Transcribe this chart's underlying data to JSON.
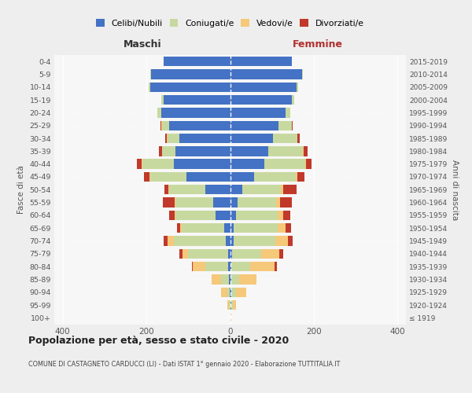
{
  "age_groups": [
    "100+",
    "95-99",
    "90-94",
    "85-89",
    "80-84",
    "75-79",
    "70-74",
    "65-69",
    "60-64",
    "55-59",
    "50-54",
    "45-49",
    "40-44",
    "35-39",
    "30-34",
    "25-29",
    "20-24",
    "15-19",
    "10-14",
    "5-9",
    "0-4"
  ],
  "birth_years": [
    "≤ 1919",
    "1920-1924",
    "1925-1929",
    "1930-1934",
    "1935-1939",
    "1940-1944",
    "1945-1949",
    "1950-1954",
    "1955-1959",
    "1960-1964",
    "1965-1969",
    "1970-1974",
    "1975-1979",
    "1980-1984",
    "1985-1989",
    "1990-1994",
    "1995-1999",
    "2000-2004",
    "2005-2009",
    "2010-2014",
    "2015-2019"
  ],
  "colors": {
    "celibi": "#4472c4",
    "coniugati": "#c8d9a0",
    "vedovi": "#f5c87a",
    "divorziati": "#c0392b"
  },
  "maschi": {
    "celibi": [
      0,
      0,
      1,
      2,
      4,
      5,
      10,
      15,
      35,
      40,
      60,
      105,
      135,
      130,
      122,
      145,
      165,
      158,
      190,
      188,
      158
    ],
    "coniugati": [
      0,
      2,
      6,
      20,
      55,
      95,
      125,
      100,
      95,
      90,
      85,
      85,
      75,
      32,
      28,
      18,
      8,
      6,
      5,
      2,
      0
    ],
    "vedovi": [
      0,
      5,
      15,
      22,
      30,
      14,
      14,
      5,
      2,
      2,
      2,
      2,
      2,
      1,
      1,
      1,
      0,
      0,
      0,
      0,
      0
    ],
    "divorziati": [
      0,
      0,
      0,
      0,
      2,
      8,
      10,
      6,
      14,
      28,
      10,
      14,
      10,
      8,
      4,
      2,
      0,
      0,
      0,
      0,
      0
    ]
  },
  "femmine": {
    "nubili": [
      0,
      2,
      2,
      3,
      3,
      5,
      8,
      8,
      15,
      18,
      30,
      58,
      82,
      92,
      102,
      115,
      132,
      148,
      158,
      172,
      148
    ],
    "coniugate": [
      0,
      5,
      12,
      18,
      45,
      70,
      100,
      105,
      98,
      92,
      92,
      98,
      98,
      82,
      58,
      32,
      12,
      6,
      5,
      2,
      0
    ],
    "vedove": [
      2,
      8,
      25,
      42,
      58,
      42,
      30,
      20,
      14,
      10,
      5,
      5,
      2,
      1,
      1,
      0,
      0,
      0,
      0,
      0,
      0
    ],
    "divorziate": [
      0,
      0,
      0,
      0,
      5,
      10,
      12,
      12,
      16,
      28,
      32,
      16,
      12,
      10,
      5,
      2,
      0,
      0,
      0,
      0,
      0
    ]
  },
  "title": "Popolazione per età, sesso e stato civile - 2020",
  "subtitle": "COMUNE DI CASTAGNETO CARDUCCI (LI) - Dati ISTAT 1° gennaio 2020 - Elaborazione TUTTITALIA.IT",
  "label_maschi": "Maschi",
  "label_femmine": "Femmine",
  "ylabel_left": "Fasce di età",
  "ylabel_right": "Anni di nascita",
  "xlim": 420,
  "legend_labels": [
    "Celibi/Nubili",
    "Coniugati/e",
    "Vedovi/e",
    "Divorziati/e"
  ],
  "bg_color": "#eeeeee",
  "plot_bg": "#f7f7f7"
}
